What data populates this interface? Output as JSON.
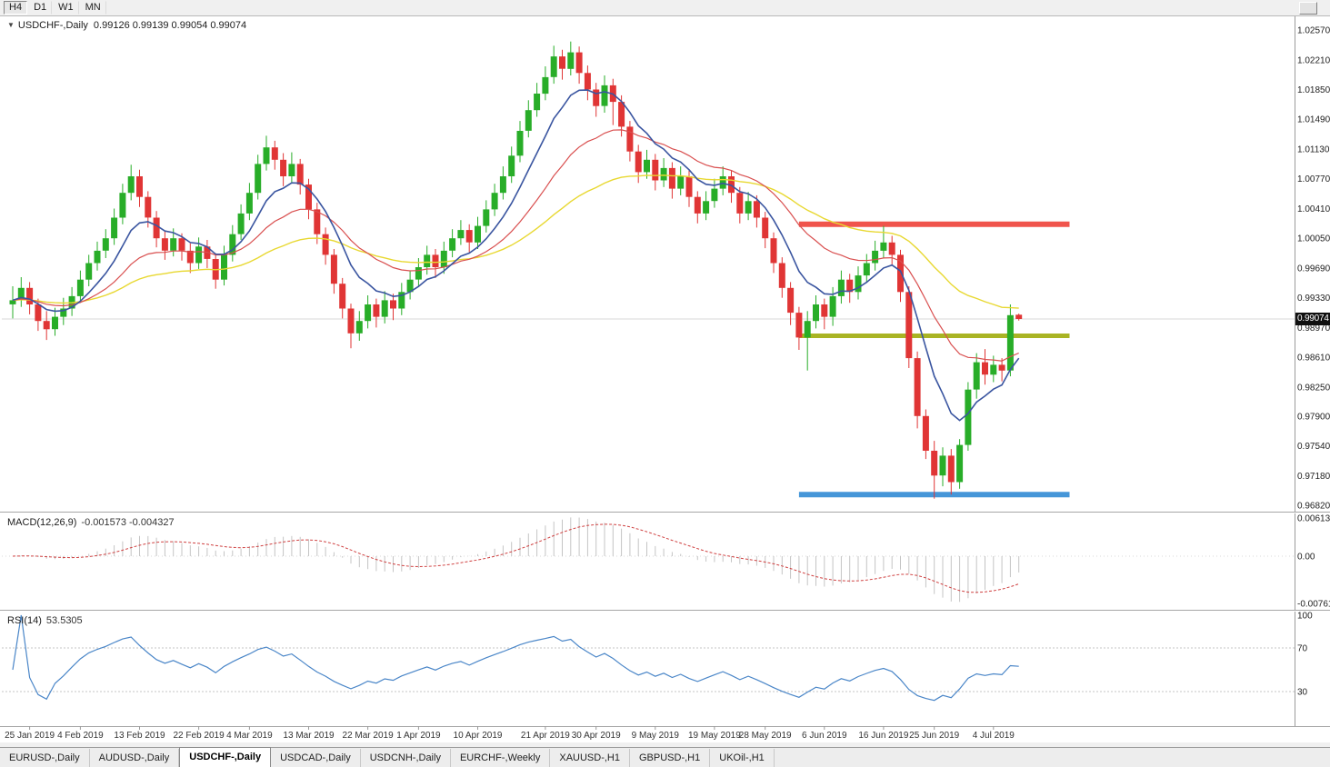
{
  "toolbar": {
    "timeframes": [
      "H4",
      "D1",
      "W1",
      "MN"
    ],
    "active_timeframe": "H4"
  },
  "chart": {
    "collapse_icon": "▼",
    "title_symbol": "USDCHF-,Daily",
    "title_ohlc": "0.99126 0.99139 0.99054 0.99074"
  },
  "price_axis": {
    "current_price": "0.99074",
    "ticks": [
      "1.02570",
      "1.02210",
      "1.01850",
      "1.01490",
      "1.01130",
      "1.00770",
      "1.00410",
      "1.00050",
      "0.99690",
      "0.99330",
      "0.98970",
      "0.98610",
      "0.98250",
      "0.97900",
      "0.97540",
      "0.97180",
      "0.96820"
    ]
  },
  "macd_panel": {
    "label": "MACD(12,26,9)",
    "values": "-0.001573 -0.004327",
    "axis_ticks": [
      {
        "label": "0.00613",
        "value": 0.00613
      },
      {
        "label": "0.00",
        "value": 0
      },
      {
        "label": "-0.00761",
        "value": -0.00761
      }
    ]
  },
  "rsi_panel": {
    "label": "RSI(14)",
    "value": "53.5305",
    "axis_ticks": [
      {
        "label": "100",
        "value": 100
      },
      {
        "label": "70",
        "value": 70
      },
      {
        "label": "30",
        "value": 30
      }
    ]
  },
  "x_axis_labels": [
    {
      "text": "25 Jan 2019",
      "bar": 2
    },
    {
      "text": "4 Feb 2019",
      "bar": 8
    },
    {
      "text": "13 Feb 2019",
      "bar": 15
    },
    {
      "text": "22 Feb 2019",
      "bar": 22
    },
    {
      "text": "4 Mar 2019",
      "bar": 28
    },
    {
      "text": "13 Mar 2019",
      "bar": 35
    },
    {
      "text": "22 Mar 2019",
      "bar": 42
    },
    {
      "text": "1 Apr 2019",
      "bar": 48
    },
    {
      "text": "10 Apr 2019",
      "bar": 55
    },
    {
      "text": "21 Apr 2019",
      "bar": 63
    },
    {
      "text": "30 Apr 2019",
      "bar": 69
    },
    {
      "text": "9 May 2019",
      "bar": 76
    },
    {
      "text": "19 May 2019",
      "bar": 83
    },
    {
      "text": "28 May 2019",
      "bar": 89
    },
    {
      "text": "6 Jun 2019",
      "bar": 96
    },
    {
      "text": "16 Jun 2019",
      "bar": 103
    },
    {
      "text": "25 Jun 2019",
      "bar": 109
    },
    {
      "text": "4 Jul 2019",
      "bar": 116
    }
  ],
  "tabs": [
    "EURUSD-,Daily",
    "AUDUSD-,Daily",
    "USDCHF-,Daily",
    "USDCAD-,Daily",
    "USDCNH-,Daily",
    "EURCHF-,Weekly",
    "XAUUSD-,H1",
    "GBPUSD-,H1",
    "UKOil-,H1"
  ],
  "active_tab": "USDCHF-,Daily",
  "chart_data": {
    "type": "candlestick",
    "symbol": "USDCHF",
    "timeframe": "Daily",
    "title": "USDCHF-,Daily 0.99126 0.99139 0.99054 0.99074",
    "price_range": {
      "top": 1.02735,
      "bottom": 0.96743
    },
    "current_price": 0.99074,
    "colors": {
      "up": "#28ad28",
      "down": "#e03535",
      "ma_fast": "#3a55a0",
      "ma_mid": "#d94f4f",
      "ma_slow": "#e8d831",
      "hline_red": "#f0544c",
      "hline_olive": "#a9b424",
      "hline_blue": "#4596d8",
      "macd_hist": "#c4c4c4",
      "macd_signal": "#cf4040",
      "rsi_line": "#4a86c8"
    },
    "moving_averages": [
      {
        "period": 45,
        "color_key": "ma_slow"
      },
      {
        "period": 20,
        "color_key": "ma_mid"
      },
      {
        "period": 8,
        "color_key": "ma_fast"
      }
    ],
    "hlines": [
      {
        "price": 1.0022,
        "color_key": "hline_red",
        "from_bar": 93,
        "to_bar": 125,
        "thickness": 6
      },
      {
        "price": 0.9887,
        "color_key": "hline_olive",
        "from_bar": 93,
        "to_bar": 125,
        "thickness": 5
      },
      {
        "price": 0.9695,
        "color_key": "hline_blue",
        "from_bar": 93,
        "to_bar": 125,
        "thickness": 6
      }
    ],
    "macd": {
      "fast": 12,
      "slow": 26,
      "signal": 9,
      "range": {
        "max": 0.00671,
        "min": -0.00861
      }
    },
    "rsi": {
      "period": 14,
      "levels": [
        70,
        30
      ],
      "range": {
        "max": 100,
        "min": 0
      }
    },
    "ohlc": [
      [
        0.9925,
        0.9947,
        0.9908,
        0.993
      ],
      [
        0.993,
        0.9958,
        0.9922,
        0.9945
      ],
      [
        0.9945,
        0.9952,
        0.9913,
        0.9925
      ],
      [
        0.9925,
        0.9932,
        0.9893,
        0.9905
      ],
      [
        0.9905,
        0.9917,
        0.9882,
        0.9895
      ],
      [
        0.9895,
        0.9921,
        0.9887,
        0.991
      ],
      [
        0.991,
        0.9933,
        0.99,
        0.992
      ],
      [
        0.992,
        0.9946,
        0.9911,
        0.9935
      ],
      [
        0.9935,
        0.9966,
        0.9927,
        0.9955
      ],
      [
        0.9955,
        0.9985,
        0.9947,
        0.9975
      ],
      [
        0.9975,
        1.0001,
        0.9966,
        0.999
      ],
      [
        0.999,
        1.0016,
        0.9981,
        1.0005
      ],
      [
        1.0005,
        1.0041,
        0.9997,
        1.003
      ],
      [
        1.003,
        1.0071,
        1.0022,
        1.006
      ],
      [
        1.006,
        1.0094,
        1.0051,
        1.008
      ],
      [
        1.008,
        1.0088,
        1.0043,
        1.0055
      ],
      [
        1.0055,
        1.0062,
        1.0018,
        1.003
      ],
      [
        1.003,
        1.0038,
        0.9994,
        1.0005
      ],
      [
        1.0005,
        1.0014,
        0.9979,
        0.999
      ],
      [
        0.999,
        1.0017,
        0.9983,
        1.0005
      ],
      [
        1.0005,
        1.0011,
        0.9978,
        0.999
      ],
      [
        0.999,
        0.9999,
        0.9963,
        0.9975
      ],
      [
        0.9975,
        1.0006,
        0.9968,
        0.9995
      ],
      [
        0.9995,
        1.0003,
        0.9969,
        0.998
      ],
      [
        0.998,
        0.9987,
        0.9944,
        0.9955
      ],
      [
        0.9955,
        0.9996,
        0.9948,
        0.9985
      ],
      [
        0.9985,
        1.0021,
        0.9977,
        1.001
      ],
      [
        1.001,
        1.0046,
        1.0003,
        1.0035
      ],
      [
        1.0035,
        1.0072,
        1.0027,
        1.006
      ],
      [
        1.006,
        1.0106,
        1.0052,
        1.0095
      ],
      [
        1.0095,
        1.0129,
        1.0087,
        1.0115
      ],
      [
        1.0115,
        1.0123,
        1.0088,
        1.01
      ],
      [
        1.01,
        1.0108,
        1.0068,
        1.008
      ],
      [
        1.008,
        1.0109,
        1.0072,
        1.0095
      ],
      [
        1.0095,
        1.0101,
        1.0058,
        1.007
      ],
      [
        1.007,
        1.0077,
        1.0028,
        1.004
      ],
      [
        1.004,
        1.0048,
        0.9998,
        1.001
      ],
      [
        1.001,
        1.0018,
        0.9973,
        0.9985
      ],
      [
        0.9985,
        0.9992,
        0.9938,
        0.995
      ],
      [
        0.995,
        0.9957,
        0.9908,
        0.992
      ],
      [
        0.992,
        0.9926,
        0.9872,
        0.989
      ],
      [
        0.989,
        0.9917,
        0.9881,
        0.9905
      ],
      [
        0.9905,
        0.9936,
        0.9896,
        0.9925
      ],
      [
        0.9925,
        0.9932,
        0.9897,
        0.991
      ],
      [
        0.991,
        0.9941,
        0.9902,
        0.993
      ],
      [
        0.993,
        0.9938,
        0.9906,
        0.992
      ],
      [
        0.992,
        0.9951,
        0.9912,
        0.994
      ],
      [
        0.994,
        0.9966,
        0.9931,
        0.9955
      ],
      [
        0.9955,
        0.9981,
        0.9946,
        0.997
      ],
      [
        0.997,
        0.9996,
        0.9961,
        0.9985
      ],
      [
        0.9985,
        0.9992,
        0.9957,
        0.997
      ],
      [
        0.997,
        1.0001,
        0.9962,
        0.999
      ],
      [
        0.999,
        1.0016,
        0.9982,
        1.0005
      ],
      [
        1.0005,
        1.0027,
        0.9997,
        1.0015
      ],
      [
        1.0015,
        1.0022,
        0.9988,
        1.0
      ],
      [
        1.0,
        1.0031,
        0.9992,
        1.002
      ],
      [
        1.002,
        1.0051,
        1.0012,
        1.004
      ],
      [
        1.004,
        1.0071,
        1.0032,
        1.006
      ],
      [
        1.006,
        1.0092,
        1.0052,
        1.008
      ],
      [
        1.008,
        1.0116,
        1.0072,
        1.0105
      ],
      [
        1.0105,
        1.0147,
        1.0097,
        1.0135
      ],
      [
        1.0135,
        1.0172,
        1.0127,
        1.016
      ],
      [
        1.016,
        1.0193,
        1.0152,
        1.018
      ],
      [
        1.018,
        1.0213,
        1.0172,
        1.02
      ],
      [
        1.02,
        1.0238,
        1.0192,
        1.0225
      ],
      [
        1.0225,
        1.0233,
        1.0197,
        1.021
      ],
      [
        1.021,
        1.0243,
        1.0202,
        1.023
      ],
      [
        1.023,
        1.0237,
        1.0192,
        1.0205
      ],
      [
        1.0205,
        1.0214,
        1.0172,
        1.0185
      ],
      [
        1.0185,
        1.0193,
        1.0152,
        1.0165
      ],
      [
        1.0165,
        1.0202,
        1.0157,
        1.019
      ],
      [
        1.019,
        1.0198,
        1.0142,
        1.017
      ],
      [
        1.017,
        1.0178,
        1.0128,
        1.014
      ],
      [
        1.014,
        1.0147,
        1.0098,
        1.011
      ],
      [
        1.011,
        1.0118,
        1.0072,
        1.0085
      ],
      [
        1.0085,
        1.0112,
        1.0077,
        1.01
      ],
      [
        1.01,
        1.0107,
        1.0063,
        1.0075
      ],
      [
        1.0075,
        1.0102,
        1.0067,
        1.009
      ],
      [
        1.009,
        1.0097,
        1.0053,
        1.0065
      ],
      [
        1.0065,
        1.0092,
        1.0057,
        1.008
      ],
      [
        1.008,
        1.0087,
        1.0043,
        1.0055
      ],
      [
        1.0055,
        1.0062,
        1.0023,
        1.0035
      ],
      [
        1.0035,
        1.0062,
        1.0027,
        1.005
      ],
      [
        1.005,
        1.0077,
        1.0042,
        1.0065
      ],
      [
        1.0065,
        1.0092,
        1.0057,
        1.008
      ],
      [
        1.008,
        1.0087,
        1.0048,
        1.006
      ],
      [
        1.006,
        1.0067,
        1.0023,
        1.0035
      ],
      [
        1.0035,
        1.0061,
        1.0027,
        1.005
      ],
      [
        1.005,
        1.0057,
        1.0018,
        1.003
      ],
      [
        1.003,
        1.0037,
        0.9993,
        1.0005
      ],
      [
        1.0005,
        1.0012,
        0.9963,
        0.9975
      ],
      [
        0.9975,
        0.9982,
        0.9933,
        0.9945
      ],
      [
        0.9945,
        0.9952,
        0.99,
        0.9915
      ],
      [
        0.9915,
        0.9922,
        0.987,
        0.9885
      ],
      [
        0.9885,
        0.9917,
        0.9845,
        0.9905
      ],
      [
        0.9905,
        0.9936,
        0.9896,
        0.9925
      ],
      [
        0.9925,
        0.9932,
        0.9895,
        0.991
      ],
      [
        0.991,
        0.9946,
        0.9899,
        0.9935
      ],
      [
        0.9935,
        0.9966,
        0.9926,
        0.9955
      ],
      [
        0.9955,
        0.9962,
        0.9927,
        0.994
      ],
      [
        0.994,
        0.9971,
        0.9931,
        0.996
      ],
      [
        0.996,
        0.9986,
        0.9951,
        0.9975
      ],
      [
        0.9975,
        1.0002,
        0.9966,
        0.999
      ],
      [
        0.999,
        1.002,
        0.9981,
        1.0
      ],
      [
        1.0,
        1.0008,
        0.9972,
        0.9985
      ],
      [
        0.9985,
        0.9991,
        0.9928,
        0.994
      ],
      [
        0.994,
        0.9947,
        0.9848,
        0.986
      ],
      [
        0.986,
        0.9868,
        0.9775,
        0.979
      ],
      [
        0.979,
        0.9798,
        0.9738,
        0.9748
      ],
      [
        0.9748,
        0.976,
        0.969,
        0.9718
      ],
      [
        0.9718,
        0.9752,
        0.9705,
        0.9742
      ],
      [
        0.9742,
        0.975,
        0.9695,
        0.971
      ],
      [
        0.971,
        0.9762,
        0.9702,
        0.9755
      ],
      [
        0.9755,
        0.9831,
        0.9748,
        0.9822
      ],
      [
        0.9822,
        0.9866,
        0.9811,
        0.9855
      ],
      [
        0.9855,
        0.9871,
        0.9828,
        0.984
      ],
      [
        0.984,
        0.9863,
        0.9831,
        0.9852
      ],
      [
        0.9852,
        0.986,
        0.9832,
        0.9845
      ],
      [
        0.9845,
        0.9925,
        0.9838,
        0.9912
      ],
      [
        0.99126,
        0.99139,
        0.99054,
        0.99074
      ]
    ]
  }
}
